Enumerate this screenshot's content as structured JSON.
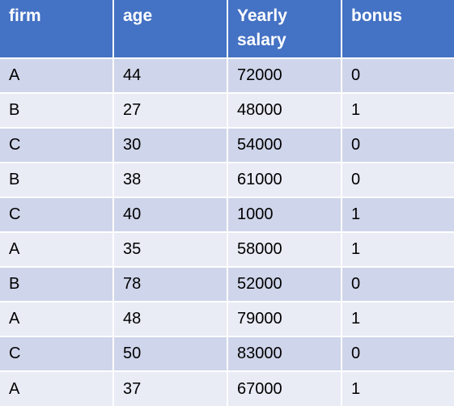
{
  "table": {
    "headers": [
      "firm",
      "age",
      "Yearly salary",
      "bonus"
    ],
    "rows": [
      [
        "A",
        "44",
        "72000",
        "0"
      ],
      [
        "B",
        "27",
        "48000",
        "1"
      ],
      [
        "C",
        "30",
        "54000",
        "0"
      ],
      [
        "B",
        "38",
        "61000",
        "0"
      ],
      [
        "C",
        "40",
        "1000",
        "1"
      ],
      [
        "A",
        "35",
        "58000",
        "1"
      ],
      [
        "B",
        "78",
        "52000",
        "0"
      ],
      [
        "A",
        "48",
        "79000",
        "1"
      ],
      [
        "C",
        "50",
        "83000",
        "0"
      ],
      [
        "A",
        "37",
        "67000",
        "1"
      ]
    ]
  },
  "colors": {
    "header_bg": "#4472c4",
    "header_text": "#ffffff",
    "row_band_dark": "#cfd5ea",
    "row_band_light": "#e9ebf5"
  }
}
